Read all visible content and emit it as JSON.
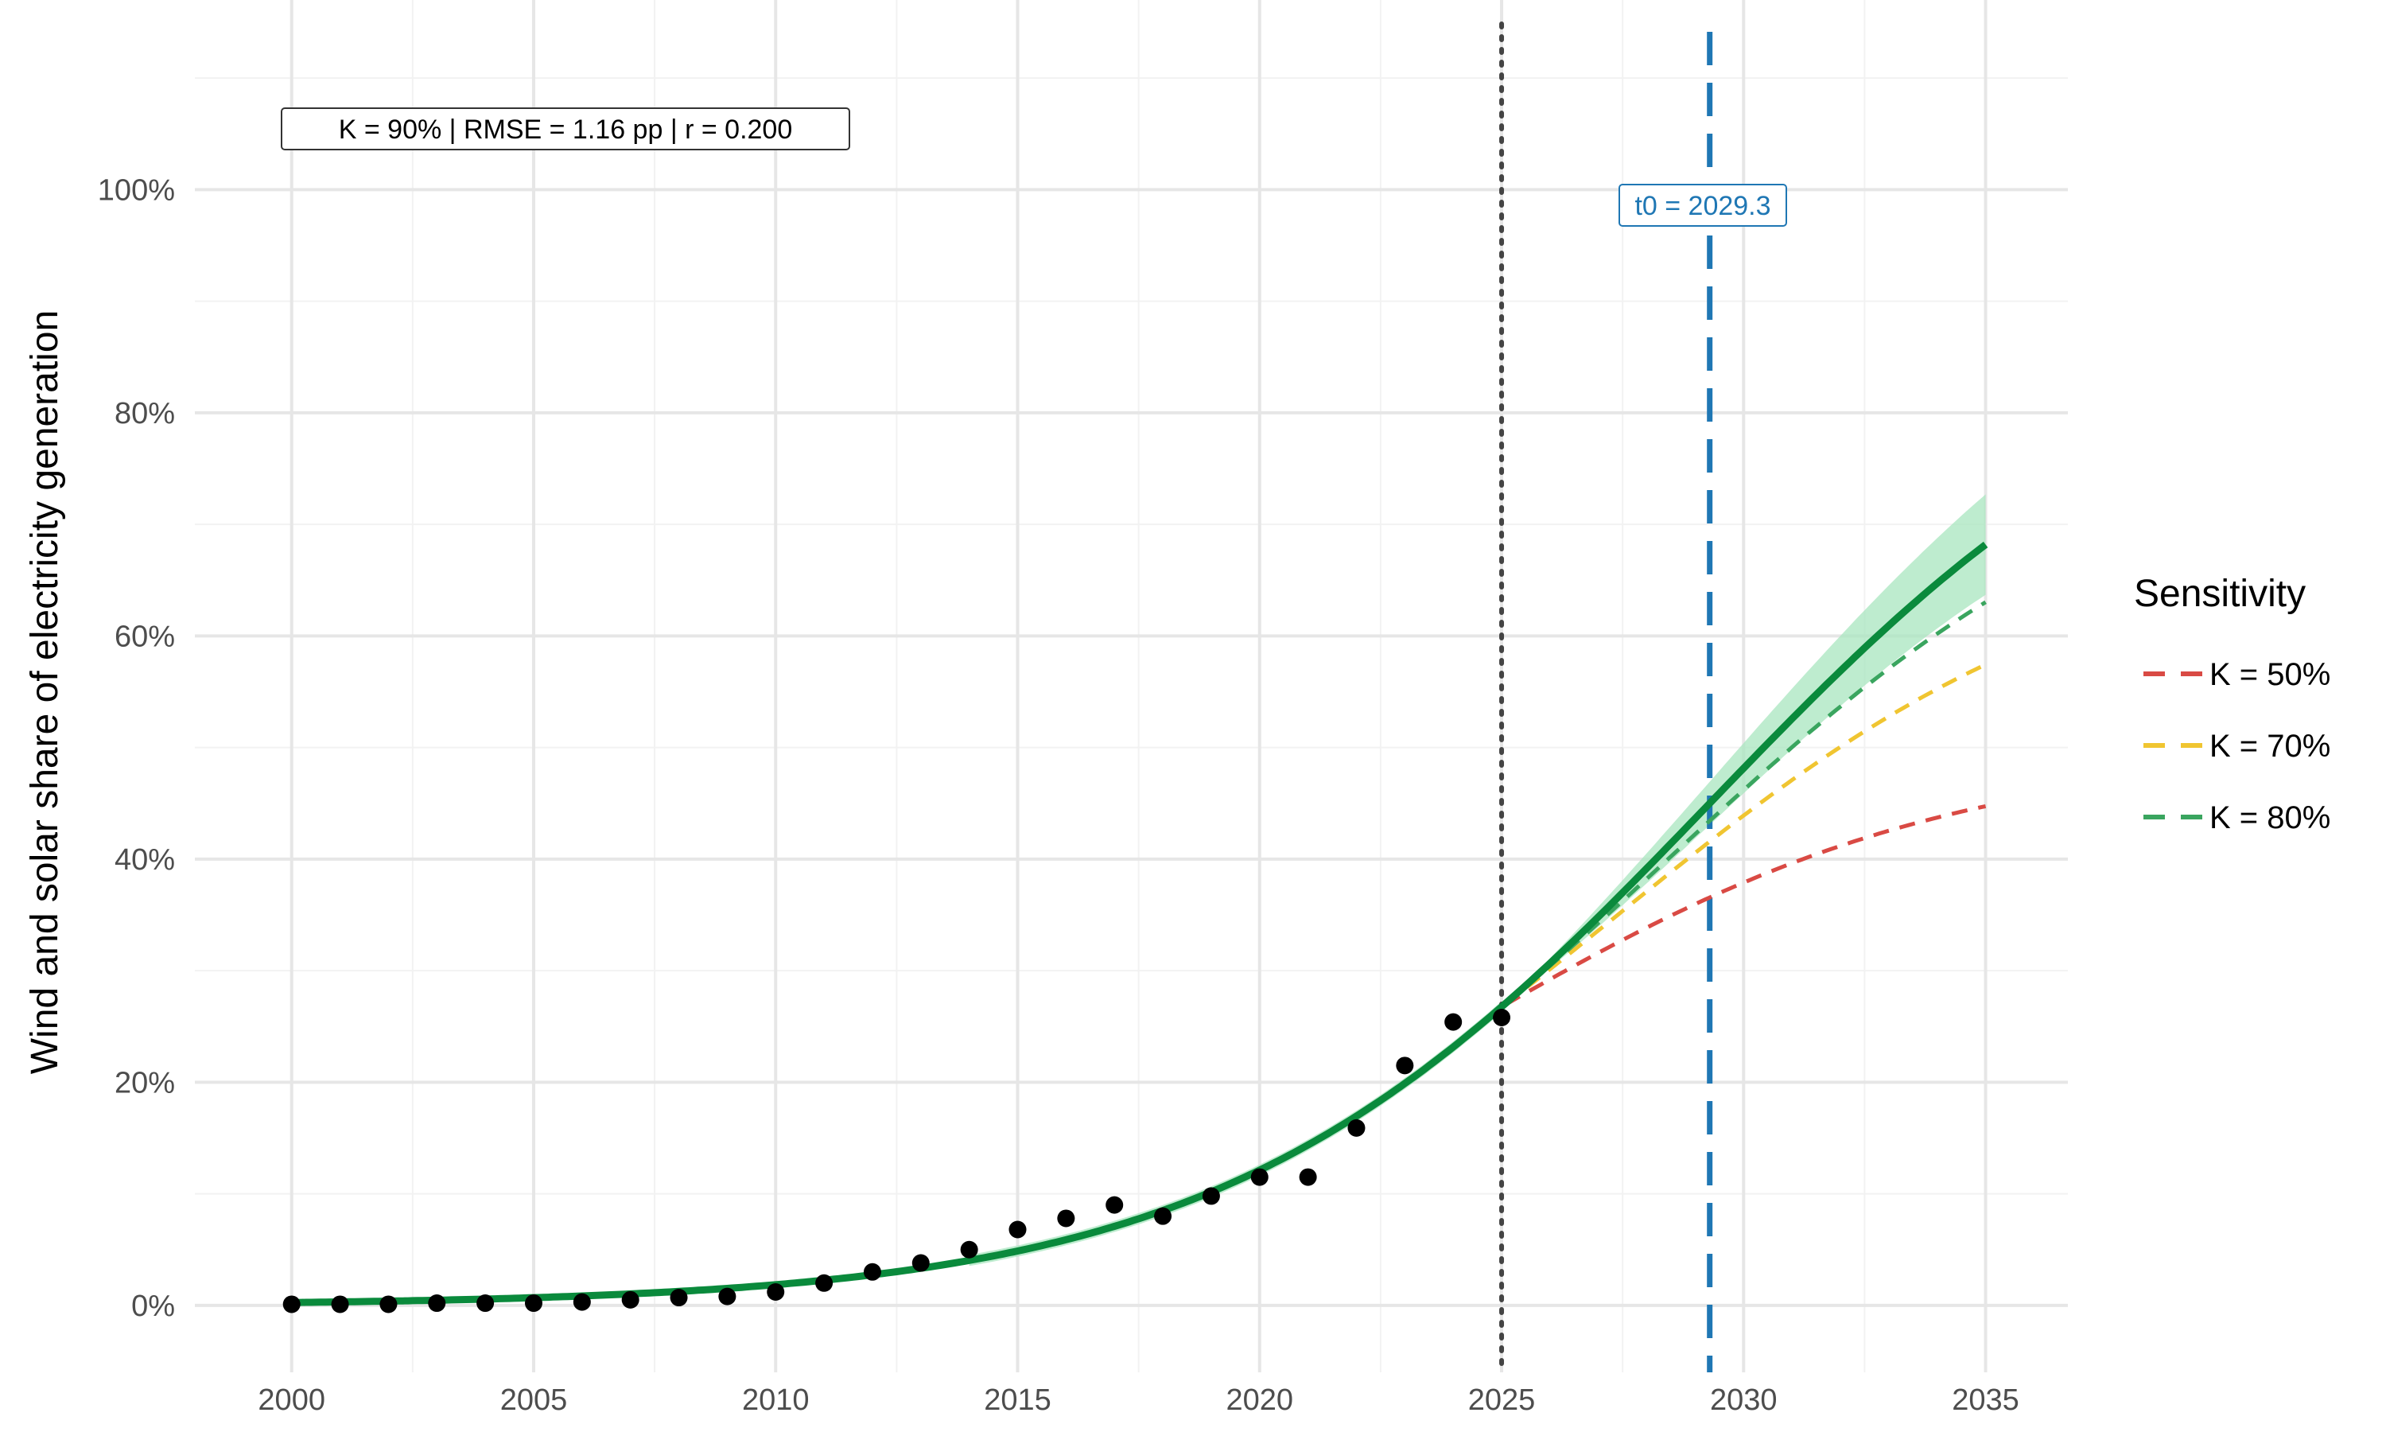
{
  "chart_data": {
    "type": "line",
    "title": "",
    "xlabel": "",
    "ylabel": "Wind and solar share of electricity generation",
    "xlim": [
      1998,
      2036.7
    ],
    "ylim": [
      -6,
      117
    ],
    "x_ticks": [
      2000,
      2005,
      2010,
      2015,
      2020,
      2025,
      2030,
      2035
    ],
    "y_ticks": [
      0,
      20,
      40,
      60,
      80,
      100
    ],
    "y_tick_labels": [
      "0%",
      "20%",
      "40%",
      "60%",
      "80%",
      "100%"
    ],
    "grid": true,
    "legend_position": "right",
    "legend_title": "Sensitivity",
    "annotation_fit": "K = 90% | RMSE = 1.16 pp | r = 0.200",
    "annotation_t0": "t0 = 2029.3",
    "t0": 2029.3,
    "cutoff_year": 2025,
    "main_fit": {
      "K": 90,
      "r": 0.2,
      "t0": 2029.3,
      "color": "#0a8a3c",
      "band_color": "#a8e6bf"
    },
    "observed": {
      "x": [
        2000,
        2001,
        2002,
        2003,
        2004,
        2005,
        2006,
        2007,
        2008,
        2009,
        2010,
        2011,
        2012,
        2013,
        2014,
        2015,
        2016,
        2017,
        2018,
        2019,
        2020,
        2021,
        2022,
        2023,
        2024,
        2025
      ],
      "y": [
        0.1,
        0.1,
        0.1,
        0.2,
        0.2,
        0.2,
        0.3,
        0.5,
        0.7,
        0.8,
        1.2,
        2.0,
        3.0,
        3.8,
        5.0,
        6.8,
        7.8,
        9.0,
        8.0,
        9.8,
        11.5,
        11.5,
        15.9,
        21.5,
        25.4,
        25.8
      ],
      "color": "#000000"
    },
    "series": [
      {
        "name": "K = 50%",
        "K": 50,
        "color": "#d94a44"
      },
      {
        "name": "K = 70%",
        "K": 70,
        "color": "#f0c531"
      },
      {
        "name": "K = 80%",
        "K": 80,
        "color": "#3aa55f"
      }
    ]
  }
}
